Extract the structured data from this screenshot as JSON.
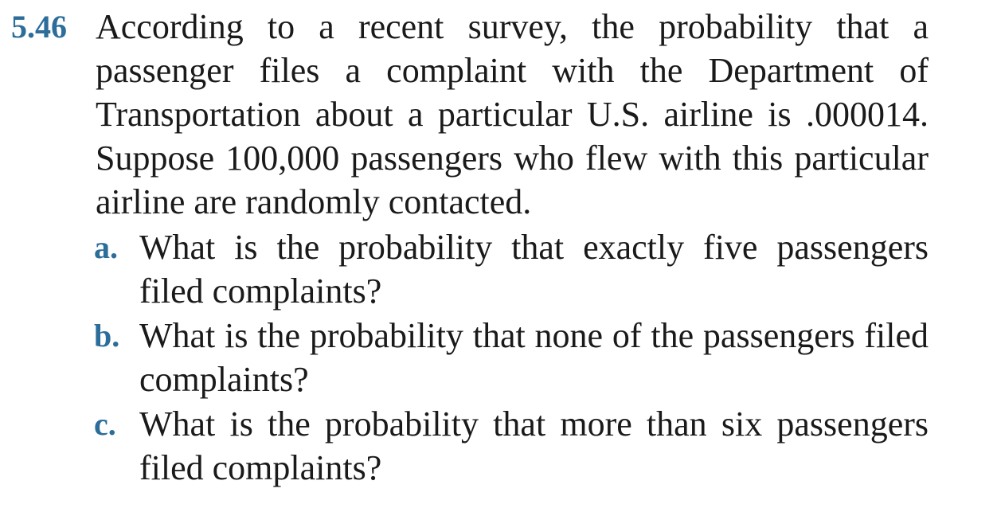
{
  "problem": {
    "number": "5.46",
    "text": "According to a recent survey, the probability that a passenger files a complaint with the Department of Transportation about a particular U.S. airline is .000014. Suppose 100,000 passengers who flew with this particular airline are randomly contacted."
  },
  "parts": [
    {
      "letter": "a.",
      "text": "What is the probability that exactly five passengers filed complaints?"
    },
    {
      "letter": "b.",
      "text": "What is the probability that none of the passengers filed complaints?"
    },
    {
      "letter": "c.",
      "text": "What is the probability that more than six passengers filed complaints?"
    }
  ],
  "colors": {
    "accent": "#2c6d99",
    "text": "#1a1a1a",
    "background": "#ffffff"
  }
}
